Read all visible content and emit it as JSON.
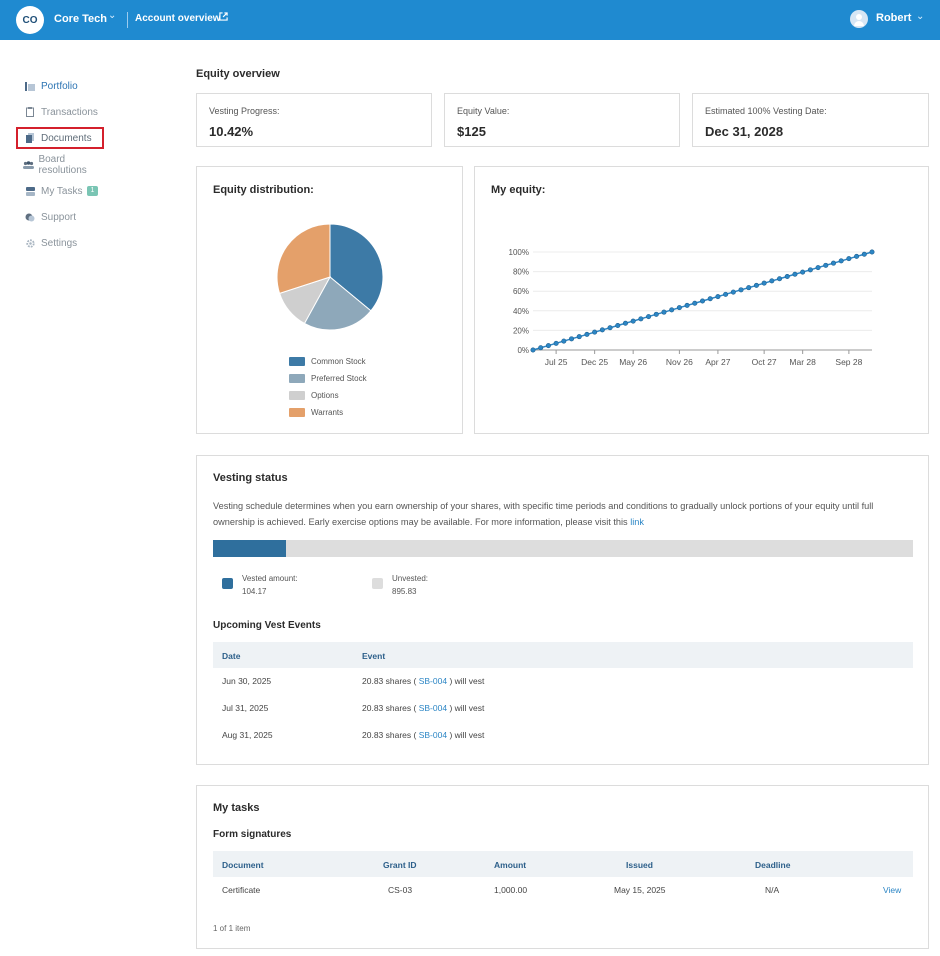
{
  "header": {
    "org_initials": "CO",
    "org_name": "Core Tech",
    "account_link": "Account overview",
    "user_name": "Robert"
  },
  "sidebar": {
    "items": [
      {
        "label": "Portfolio",
        "icon": "chart-icon"
      },
      {
        "label": "Transactions",
        "icon": "clipboard-icon"
      },
      {
        "label": "Documents",
        "icon": "document-icon"
      },
      {
        "label": "Board resolutions",
        "icon": "people-icon"
      },
      {
        "label": "My Tasks",
        "icon": "tasks-icon",
        "badge": "1"
      },
      {
        "label": "Support",
        "icon": "chat-icon"
      },
      {
        "label": "Settings",
        "icon": "gear-icon"
      }
    ]
  },
  "equity_overview": {
    "title": "Equity overview",
    "stats": [
      {
        "label": "Vesting Progress:",
        "value": "10.42%"
      },
      {
        "label": "Equity Value:",
        "value": "$125"
      },
      {
        "label": "Estimated 100% Vesting Date:",
        "value": "Dec 31, 2028"
      }
    ]
  },
  "distribution": {
    "title": "Equity distribution:",
    "legend": [
      "Common Stock",
      "Preferred Stock",
      "Options",
      "Warrants"
    ]
  },
  "my_equity": {
    "title": "My equity:"
  },
  "chart_data": [
    {
      "type": "pie",
      "categories": [
        "Common Stock",
        "Preferred Stock",
        "Options",
        "Warrants"
      ],
      "values": [
        36,
        22,
        12,
        30
      ],
      "colors": [
        "#3d7aa6",
        "#8ea8ba",
        "#cfcfcf",
        "#e4a06a"
      ],
      "title": "Equity distribution:",
      "legend_placement": "bottom"
    },
    {
      "type": "line",
      "x_ticks": [
        "Jul 25",
        "Dec 25",
        "May 26",
        "Nov 26",
        "Apr 27",
        "Oct 27",
        "Mar 28",
        "Sep 28"
      ],
      "y_ticks": [
        "0%",
        "20%",
        "40%",
        "60%",
        "80%",
        "100%"
      ],
      "x_range": [
        "Apr 25",
        "Dec 28"
      ],
      "ylim": [
        0,
        100
      ],
      "grid": true,
      "series": [
        {
          "color": "#2c86c5",
          "x": [
            "Apr 25",
            "May 25",
            "Jun 25",
            "Jul 25",
            "Aug 25",
            "Sep 25",
            "Oct 25",
            "Nov 25",
            "Dec 25",
            "Jan 26",
            "Feb 26",
            "Mar 26",
            "Apr 26",
            "May 26",
            "Jun 26",
            "Jul 26",
            "Aug 26",
            "Sep 26",
            "Oct 26",
            "Nov 26",
            "Dec 26",
            "Jan 27",
            "Feb 27",
            "Mar 27",
            "Apr 27",
            "May 27",
            "Jun 27",
            "Jul 27",
            "Aug 27",
            "Sep 27",
            "Oct 27",
            "Nov 27",
            "Dec 27",
            "Jan 28",
            "Feb 28",
            "Mar 28",
            "Apr 28",
            "May 28",
            "Jun 28",
            "Jul 28",
            "Aug 28",
            "Sep 28",
            "Oct 28",
            "Nov 28",
            "Dec 28"
          ],
          "values": [
            0,
            2.3,
            4.5,
            6.8,
            9.1,
            11.4,
            13.6,
            15.9,
            18.2,
            20.5,
            22.7,
            25.0,
            27.3,
            29.5,
            31.8,
            34.1,
            36.4,
            38.6,
            40.9,
            43.2,
            45.5,
            47.7,
            50.0,
            52.3,
            54.5,
            56.8,
            59.1,
            61.4,
            63.6,
            65.9,
            68.2,
            70.5,
            72.7,
            75.0,
            77.3,
            79.5,
            81.8,
            84.1,
            86.4,
            88.6,
            90.9,
            93.2,
            95.5,
            97.7,
            100
          ]
        }
      ]
    }
  ],
  "vesting": {
    "title": "Vesting status",
    "description": "Vesting schedule determines when you earn ownership of your shares, with specific time periods and conditions to gradually unlock portions of your equity until full ownership is achieved. Early exercise options may be available. For more information, please visit this",
    "link_text": "link",
    "vested_fraction": 0.1042,
    "vested_label": "Vested amount:",
    "vested_value": "104.17",
    "unvested_label": "Unvested:",
    "unvested_value": "895.83",
    "colors": {
      "vested": "#2f6f9d",
      "unvested": "#dddddd"
    },
    "events_title": "Upcoming Vest Events",
    "columns": [
      "Date",
      "Event"
    ],
    "events": [
      {
        "date": "Jun 30, 2025",
        "pre": "20.83 shares (",
        "code": "SB-004",
        "post": ") will vest"
      },
      {
        "date": "Jul 31, 2025",
        "pre": "20.83 shares (",
        "code": "SB-004",
        "post": ") will vest"
      },
      {
        "date": "Aug 31, 2025",
        "pre": "20.83 shares (",
        "code": "SB-004",
        "post": ") will vest"
      }
    ]
  },
  "tasks": {
    "title": "My tasks",
    "subtitle": "Form signatures",
    "columns": [
      "Document",
      "Grant ID",
      "Amount",
      "Issued",
      "Deadline"
    ],
    "rows": [
      {
        "document": "Certificate",
        "grant_id": "CS-03",
        "amount": "1,000.00",
        "issued": "May 15, 2025",
        "deadline": "N/A",
        "action": "View"
      }
    ],
    "pager": "1 of 1 item"
  }
}
